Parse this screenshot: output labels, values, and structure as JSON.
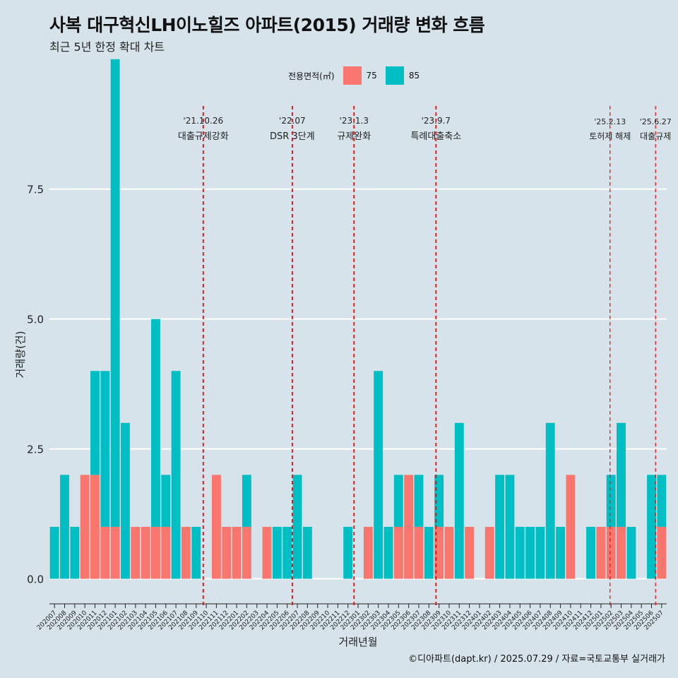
{
  "title": "사복 대구혁신LH이노힐즈 아파트(2015) 거래량 변화 흐름",
  "subtitle": "최근 5년 한정 확대 차트",
  "legend": {
    "title": "전용면적(㎡)",
    "items": [
      "75",
      "85"
    ]
  },
  "caption": "©디아파트(dapt.kr) / 2025.07.29 / 자료=국토교통부 실거래가",
  "colors": {
    "s75": "#F8766D",
    "s85": "#00BFC4",
    "event_line": "#FF0000",
    "background": "#D6E3EA",
    "grid": "#FFFFFF"
  },
  "chart_data": {
    "type": "bar",
    "title": "사복 대구혁신LH이노힐즈 아파트(2015) 거래량 변화 흐름",
    "xlabel": "거래년월",
    "ylabel": "거래량(건)",
    "ylim": [
      -0.55,
      9.1
    ],
    "yticks": [
      0.0,
      2.5,
      5.0,
      7.5
    ],
    "ytick_labels": [
      "0.0",
      "2.5",
      "5.0",
      "7.5"
    ],
    "categories": [
      "202007",
      "202008",
      "202009",
      "202010",
      "202011",
      "202012",
      "202101",
      "202102",
      "202103",
      "202104",
      "202105",
      "202106",
      "202107",
      "202108",
      "202109",
      "202110",
      "202111",
      "202112",
      "202201",
      "202202",
      "202203",
      "202204",
      "202205",
      "202206",
      "202207",
      "202208",
      "202209",
      "202210",
      "202211",
      "202212",
      "202301",
      "202302",
      "202303",
      "202304",
      "202305",
      "202306",
      "202307",
      "202308",
      "202309",
      "202310",
      "202311",
      "202312",
      "202401",
      "202402",
      "202403",
      "202404",
      "202405",
      "202406",
      "202407",
      "202408",
      "202409",
      "202410",
      "202411",
      "202412",
      "202501",
      "202502",
      "202503",
      "202504",
      "202505",
      "202506",
      "202507"
    ],
    "series": [
      {
        "name": "75",
        "values": [
          0,
          0,
          0,
          2,
          2,
          1,
          1,
          0,
          1,
          1,
          1,
          1,
          0,
          1,
          0,
          0,
          2,
          1,
          1,
          1,
          0,
          1,
          0,
          0,
          0,
          0,
          0,
          0,
          0,
          0,
          0,
          1,
          0,
          0,
          1,
          2,
          1,
          0,
          1,
          1,
          0,
          1,
          0,
          1,
          0,
          0,
          0,
          0,
          0,
          0,
          0,
          2,
          0,
          0,
          1,
          1,
          1,
          0,
          0,
          0,
          1
        ]
      },
      {
        "name": "85",
        "values": [
          1,
          2,
          1,
          0,
          2,
          3,
          9,
          3,
          0,
          0,
          4,
          1,
          4,
          0,
          1,
          0,
          0,
          0,
          0,
          1,
          0,
          0,
          1,
          1,
          2,
          1,
          0,
          0,
          0,
          1,
          0,
          0,
          4,
          1,
          1,
          0,
          1,
          1,
          1,
          0,
          3,
          0,
          0,
          0,
          2,
          2,
          1,
          1,
          1,
          3,
          1,
          0,
          0,
          1,
          0,
          1,
          2,
          1,
          0,
          2,
          1
        ]
      }
    ],
    "events": [
      {
        "date": "'21.10.26",
        "label": "대출규제강화",
        "month_index": 15.2
      },
      {
        "date": "'22.07",
        "label": "DSR 3단계",
        "month_index": 24.0
      },
      {
        "date": "'23.1.3",
        "label": "규제완화",
        "month_index": 30.1
      },
      {
        "date": "'23.9.7",
        "label": "특례대출축소",
        "month_index": 38.2
      },
      {
        "date": "'25.2.13",
        "label": "토허제 해제",
        "month_index": 55.4
      },
      {
        "date": "'25.6.27",
        "label": "대출규제",
        "month_index": 59.9
      }
    ]
  }
}
